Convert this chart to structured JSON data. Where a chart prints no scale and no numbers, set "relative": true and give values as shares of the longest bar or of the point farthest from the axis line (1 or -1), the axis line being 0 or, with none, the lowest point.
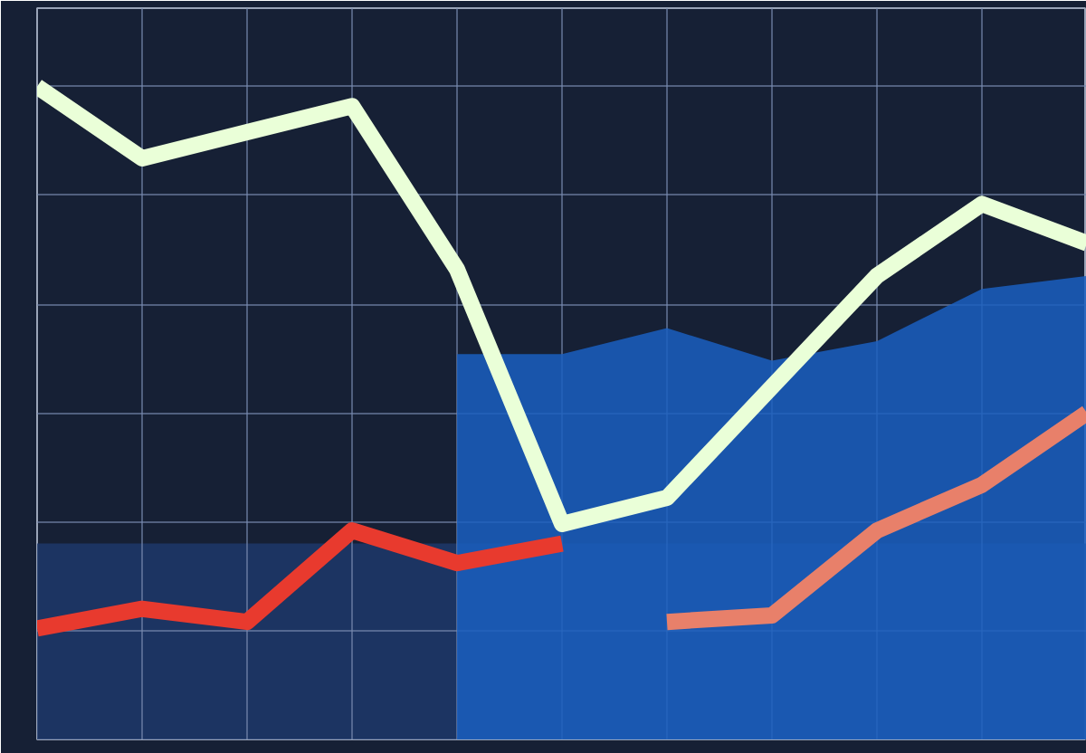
{
  "chart_data": {
    "type": "line",
    "relative": true,
    "categories": [
      null,
      null,
      null,
      null,
      null,
      null,
      null,
      null,
      null,
      null,
      null
    ],
    "series": [
      {
        "type": "area",
        "color": "#1a5fc0",
        "values": [
          null,
          null,
          null,
          null,
          0.59,
          0.59,
          0.63,
          0.58,
          0.61,
          0.69,
          0.71
        ]
      },
      {
        "color": "#eaffd8",
        "values": [
          1,
          0.89,
          0.93,
          0.97,
          0.72,
          0.33,
          0.37,
          0.54,
          0.71,
          0.82,
          0.76
        ]
      },
      {
        "color": "#e83a2e",
        "values": [
          0.17,
          0.2,
          0.18,
          0.32,
          0.27,
          0.3,
          null,
          null,
          null,
          null,
          null
        ]
      },
      {
        "color": "#e8806a",
        "values": [
          null,
          null,
          null,
          null,
          null,
          null,
          0.18,
          0.19,
          0.32,
          0.39,
          0.5
        ]
      }
    ],
    "bands": [
      {
        "axis": "y",
        "from": 0,
        "to": 0.3,
        "color": "#1e3a6e"
      }
    ],
    "grid": true,
    "tick_labels": false,
    "line_style": "solid",
    "marker": "none"
  }
}
